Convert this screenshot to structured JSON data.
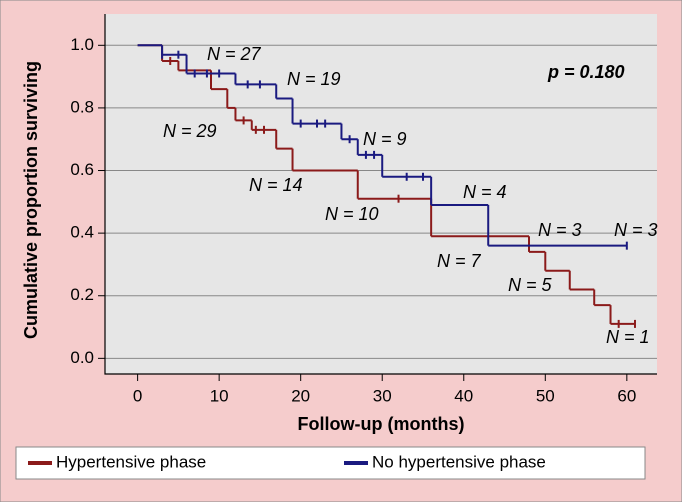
{
  "chart_data": {
    "type": "step",
    "xlabel": "Follow-up (months)",
    "ylabel": "Cumulative proportion surviving",
    "xlim": [
      -4,
      63.7
    ],
    "ylim": [
      -0.05,
      1.1
    ],
    "xticks": [
      0,
      10,
      20,
      30,
      40,
      50,
      60
    ],
    "yticks": [
      {
        "value": 0,
        "label": "0.0"
      },
      {
        "value": 0.2,
        "label": "0.2"
      },
      {
        "value": 0.4,
        "label": "0.4"
      },
      {
        "value": 0.6,
        "label": "0.6"
      },
      {
        "value": 0.8,
        "label": "0.8"
      },
      {
        "value": 1,
        "label": "1.0"
      }
    ],
    "grid": true,
    "series": [
      {
        "name": "Hypertensive phase",
        "color": "#8b1a1a",
        "x": [
          0,
          3,
          5,
          9,
          11,
          12,
          14,
          17,
          19,
          27,
          36,
          48,
          50,
          53,
          56,
          58
        ],
        "values": [
          1.0,
          0.95,
          0.92,
          0.86,
          0.8,
          0.76,
          0.73,
          0.67,
          0.6,
          0.51,
          0.39,
          0.34,
          0.28,
          0.22,
          0.17,
          0.11
        ],
        "censored": {
          "x": [
            4,
            13,
            14.5,
            15.5,
            32,
            59,
            61
          ],
          "values": [
            0.95,
            0.76,
            0.73,
            0.73,
            0.51,
            0.11,
            0.11
          ]
        }
      },
      {
        "name": "No hypertensive phase",
        "color": "#1a1a80",
        "x": [
          0,
          3,
          6,
          12,
          17,
          19,
          25,
          27,
          30,
          36,
          43
        ],
        "values": [
          1.0,
          0.97,
          0.91,
          0.875,
          0.83,
          0.75,
          0.7,
          0.65,
          0.58,
          0.49,
          0.36
        ],
        "censored": {
          "x": [
            3,
            5,
            7,
            8.5,
            10,
            13.5,
            15,
            20,
            22,
            23,
            26,
            28,
            29,
            33,
            35,
            60
          ],
          "values": [
            0.97,
            0.97,
            0.91,
            0.91,
            0.91,
            0.875,
            0.875,
            0.75,
            0.75,
            0.75,
            0.7,
            0.65,
            0.65,
            0.58,
            0.58,
            0.36
          ]
        }
      }
    ],
    "annotations": [
      "p = 0.180",
      "N = 27",
      "N = 19",
      "N = 29",
      "N = 9",
      "N = 14",
      "N = 4",
      "N = 10",
      "N = 3",
      "N = 3",
      "N = 7",
      "N = 5",
      "N = 1"
    ]
  }
}
